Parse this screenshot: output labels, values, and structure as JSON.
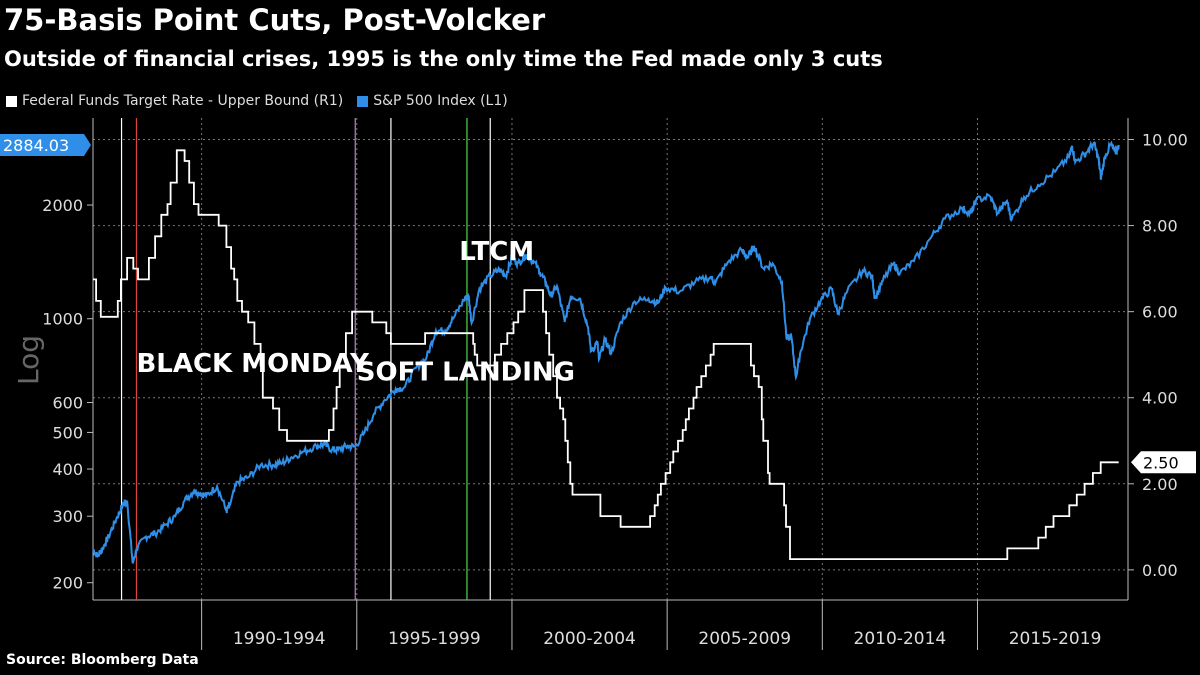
{
  "chart_data": {
    "type": "line",
    "title": "75-Basis Point Cuts, Post-Volcker",
    "subtitle": "Outside of financial crises, 1995 is the only time the Fed made only 3 cuts",
    "source": "Source: Bloomberg Data",
    "left_axis_label": "Log",
    "left_axis": {
      "scale": "log",
      "ylim": [
        180,
        3400
      ],
      "ticks": [
        200,
        300,
        400,
        500,
        600,
        1000,
        2000
      ]
    },
    "right_axis": {
      "scale": "linear",
      "ylim": [
        -0.7,
        10.5
      ],
      "ticks": [
        "0.00",
        "2.00",
        "4.00",
        "6.00",
        "8.00",
        "10.00"
      ]
    },
    "x_range": [
      1986.5,
      2019.85
    ],
    "periods": [
      {
        "label": "1990-1994",
        "start": 1990,
        "end": 1995
      },
      {
        "label": "1995-1999",
        "start": 1995,
        "end": 2000
      },
      {
        "label": "2000-2004",
        "start": 2000,
        "end": 2005
      },
      {
        "label": "2005-2009",
        "start": 2005,
        "end": 2010
      },
      {
        "label": "2010-2014",
        "start": 2010,
        "end": 2015
      },
      {
        "label": "2015-2019",
        "start": 2015,
        "end": 2020
      }
    ],
    "series": [
      {
        "name": "Federal Funds Target Rate - Upper Bound  (R1)",
        "axis": "right",
        "color": "#ffffff",
        "steps": [
          [
            1986.5,
            6.75
          ],
          [
            1986.6,
            6.25
          ],
          [
            1986.75,
            5.88
          ],
          [
            1987.3,
            6.25
          ],
          [
            1987.4,
            6.75
          ],
          [
            1987.6,
            7.25
          ],
          [
            1987.8,
            7.0
          ],
          [
            1987.95,
            6.75
          ],
          [
            1988.3,
            7.25
          ],
          [
            1988.5,
            7.75
          ],
          [
            1988.7,
            8.25
          ],
          [
            1988.9,
            8.5
          ],
          [
            1989.0,
            9.0
          ],
          [
            1989.2,
            9.75
          ],
          [
            1989.45,
            9.5
          ],
          [
            1989.6,
            9.0
          ],
          [
            1989.75,
            8.5
          ],
          [
            1989.9,
            8.25
          ],
          [
            1990.55,
            8.0
          ],
          [
            1990.8,
            7.5
          ],
          [
            1990.95,
            7.0
          ],
          [
            1991.05,
            6.75
          ],
          [
            1991.15,
            6.25
          ],
          [
            1991.3,
            6.0
          ],
          [
            1991.5,
            5.75
          ],
          [
            1991.7,
            5.25
          ],
          [
            1991.9,
            4.75
          ],
          [
            1991.97,
            4.0
          ],
          [
            1992.3,
            3.75
          ],
          [
            1992.5,
            3.25
          ],
          [
            1992.75,
            3.0
          ],
          [
            1994.1,
            3.25
          ],
          [
            1994.25,
            3.75
          ],
          [
            1994.35,
            4.25
          ],
          [
            1994.45,
            4.75
          ],
          [
            1994.65,
            5.5
          ],
          [
            1994.85,
            6.0
          ],
          [
            1995.5,
            5.75
          ],
          [
            1995.95,
            5.5
          ],
          [
            1996.1,
            5.25
          ],
          [
            1997.2,
            5.5
          ],
          [
            1998.75,
            5.25
          ],
          [
            1998.8,
            5.0
          ],
          [
            1998.88,
            4.75
          ],
          [
            1999.45,
            5.0
          ],
          [
            1999.65,
            5.25
          ],
          [
            1999.85,
            5.5
          ],
          [
            2000.05,
            5.75
          ],
          [
            2000.2,
            6.0
          ],
          [
            2000.4,
            6.5
          ],
          [
            2001.0,
            6.0
          ],
          [
            2001.1,
            5.5
          ],
          [
            2001.2,
            5.0
          ],
          [
            2001.33,
            4.5
          ],
          [
            2001.45,
            4.0
          ],
          [
            2001.55,
            3.75
          ],
          [
            2001.65,
            3.5
          ],
          [
            2001.72,
            3.0
          ],
          [
            2001.8,
            2.5
          ],
          [
            2001.88,
            2.0
          ],
          [
            2001.95,
            1.75
          ],
          [
            2002.85,
            1.25
          ],
          [
            2003.5,
            1.0
          ],
          [
            2004.45,
            1.25
          ],
          [
            2004.6,
            1.5
          ],
          [
            2004.7,
            1.75
          ],
          [
            2004.8,
            2.0
          ],
          [
            2004.95,
            2.25
          ],
          [
            2005.1,
            2.5
          ],
          [
            2005.2,
            2.75
          ],
          [
            2005.35,
            3.0
          ],
          [
            2005.5,
            3.25
          ],
          [
            2005.6,
            3.5
          ],
          [
            2005.7,
            3.75
          ],
          [
            2005.85,
            4.0
          ],
          [
            2005.95,
            4.25
          ],
          [
            2006.1,
            4.5
          ],
          [
            2006.25,
            4.75
          ],
          [
            2006.4,
            5.0
          ],
          [
            2006.5,
            5.25
          ],
          [
            2007.7,
            4.75
          ],
          [
            2007.8,
            4.5
          ],
          [
            2007.95,
            4.25
          ],
          [
            2008.05,
            3.5
          ],
          [
            2008.1,
            3.0
          ],
          [
            2008.25,
            2.25
          ],
          [
            2008.3,
            2.0
          ],
          [
            2008.77,
            1.5
          ],
          [
            2008.83,
            1.0
          ],
          [
            2008.96,
            0.25
          ],
          [
            2015.96,
            0.5
          ],
          [
            2016.96,
            0.75
          ],
          [
            2017.2,
            1.0
          ],
          [
            2017.45,
            1.25
          ],
          [
            2017.96,
            1.5
          ],
          [
            2018.2,
            1.75
          ],
          [
            2018.45,
            2.0
          ],
          [
            2018.72,
            2.25
          ],
          [
            2018.97,
            2.5
          ],
          [
            2019.55,
            2.5
          ]
        ],
        "last_value": "2.50"
      },
      {
        "name": "S&P 500 Index  (L1)",
        "axis": "left",
        "color": "#2f8fe8",
        "points": [
          [
            1986.5,
            245
          ],
          [
            1986.65,
            235
          ],
          [
            1986.85,
            250
          ],
          [
            1987.0,
            265
          ],
          [
            1987.25,
            295
          ],
          [
            1987.45,
            320
          ],
          [
            1987.6,
            330
          ],
          [
            1987.78,
            225
          ],
          [
            1987.9,
            245
          ],
          [
            1988.2,
            265
          ],
          [
            1988.5,
            270
          ],
          [
            1988.85,
            285
          ],
          [
            1989.15,
            300
          ],
          [
            1989.45,
            330
          ],
          [
            1989.75,
            350
          ],
          [
            1989.95,
            345
          ],
          [
            1990.15,
            340
          ],
          [
            1990.5,
            360
          ],
          [
            1990.8,
            310
          ],
          [
            1990.9,
            320
          ],
          [
            1991.15,
            370
          ],
          [
            1991.5,
            380
          ],
          [
            1991.9,
            410
          ],
          [
            1992.3,
            410
          ],
          [
            1992.6,
            415
          ],
          [
            1992.9,
            430
          ],
          [
            1993.3,
            445
          ],
          [
            1993.7,
            460
          ],
          [
            1993.95,
            465
          ],
          [
            1994.2,
            450
          ],
          [
            1994.4,
            450
          ],
          [
            1994.7,
            460
          ],
          [
            1994.95,
            458
          ],
          [
            1995.25,
            500
          ],
          [
            1995.55,
            560
          ],
          [
            1995.9,
            610
          ],
          [
            1996.25,
            650
          ],
          [
            1996.55,
            660
          ],
          [
            1996.9,
            740
          ],
          [
            1997.25,
            790
          ],
          [
            1997.55,
            930
          ],
          [
            1997.85,
            930
          ],
          [
            1998.1,
            1000
          ],
          [
            1998.45,
            1120
          ],
          [
            1998.6,
            1150
          ],
          [
            1998.7,
            975
          ],
          [
            1998.95,
            1200
          ],
          [
            1999.3,
            1300
          ],
          [
            1999.6,
            1350
          ],
          [
            1999.8,
            1300
          ],
          [
            2000.0,
            1450
          ],
          [
            2000.2,
            1400
          ],
          [
            2000.45,
            1480
          ],
          [
            2000.7,
            1420
          ],
          [
            2000.9,
            1330
          ],
          [
            2001.1,
            1240
          ],
          [
            2001.25,
            1150
          ],
          [
            2001.45,
            1220
          ],
          [
            2001.7,
            980
          ],
          [
            2001.9,
            1150
          ],
          [
            2002.2,
            1130
          ],
          [
            2002.45,
            950
          ],
          [
            2002.55,
            820
          ],
          [
            2002.75,
            870
          ],
          [
            2002.8,
            780
          ],
          [
            2003.0,
            880
          ],
          [
            2003.2,
            810
          ],
          [
            2003.5,
            980
          ],
          [
            2003.95,
            1110
          ],
          [
            2004.4,
            1130
          ],
          [
            2004.7,
            1100
          ],
          [
            2004.95,
            1210
          ],
          [
            2005.4,
            1180
          ],
          [
            2005.9,
            1250
          ],
          [
            2006.4,
            1290
          ],
          [
            2006.55,
            1240
          ],
          [
            2006.95,
            1410
          ],
          [
            2007.4,
            1520
          ],
          [
            2007.6,
            1450
          ],
          [
            2007.8,
            1560
          ],
          [
            2008.1,
            1360
          ],
          [
            2008.4,
            1400
          ],
          [
            2008.7,
            1250
          ],
          [
            2008.85,
            880
          ],
          [
            2009.0,
            900
          ],
          [
            2009.15,
            700
          ],
          [
            2009.3,
            820
          ],
          [
            2009.6,
            1000
          ],
          [
            2009.95,
            1120
          ],
          [
            2010.3,
            1200
          ],
          [
            2010.5,
            1030
          ],
          [
            2010.8,
            1180
          ],
          [
            2011.3,
            1340
          ],
          [
            2011.6,
            1300
          ],
          [
            2011.7,
            1130
          ],
          [
            2011.95,
            1260
          ],
          [
            2012.3,
            1400
          ],
          [
            2012.5,
            1320
          ],
          [
            2012.95,
            1420
          ],
          [
            2013.5,
            1640
          ],
          [
            2013.95,
            1840
          ],
          [
            2014.5,
            1960
          ],
          [
            2014.8,
            1900
          ],
          [
            2014.95,
            2060
          ],
          [
            2015.4,
            2110
          ],
          [
            2015.65,
            1900
          ],
          [
            2015.95,
            2050
          ],
          [
            2016.1,
            1830
          ],
          [
            2016.5,
            2100
          ],
          [
            2016.95,
            2260
          ],
          [
            2017.5,
            2450
          ],
          [
            2017.95,
            2680
          ],
          [
            2018.05,
            2870
          ],
          [
            2018.15,
            2600
          ],
          [
            2018.5,
            2750
          ],
          [
            2018.75,
            2920
          ],
          [
            2018.9,
            2650
          ],
          [
            2018.98,
            2350
          ],
          [
            2019.1,
            2680
          ],
          [
            2019.3,
            2900
          ],
          [
            2019.45,
            2750
          ],
          [
            2019.55,
            2884
          ]
        ],
        "last_value": "2884.03"
      }
    ],
    "event_lines": [
      {
        "x": 1987.42,
        "color": "#ffffff"
      },
      {
        "x": 1987.9,
        "color": "#e0433a"
      },
      {
        "x": 1994.95,
        "color": "#c07fd0"
      },
      {
        "x": 1996.1,
        "color": "#ffffff"
      },
      {
        "x": 1998.55,
        "color": "#4cd84c"
      },
      {
        "x": 1999.3,
        "color": "#ffffff"
      }
    ],
    "annotations": [
      {
        "text": "BLACK MONDAY",
        "x": 1987.9,
        "y_right": 4.6
      },
      {
        "text": "SOFT LANDING",
        "x": 1995.0,
        "y_right": 4.4
      },
      {
        "text": "LTCM",
        "x": 1998.3,
        "y_right": 7.2
      }
    ]
  }
}
